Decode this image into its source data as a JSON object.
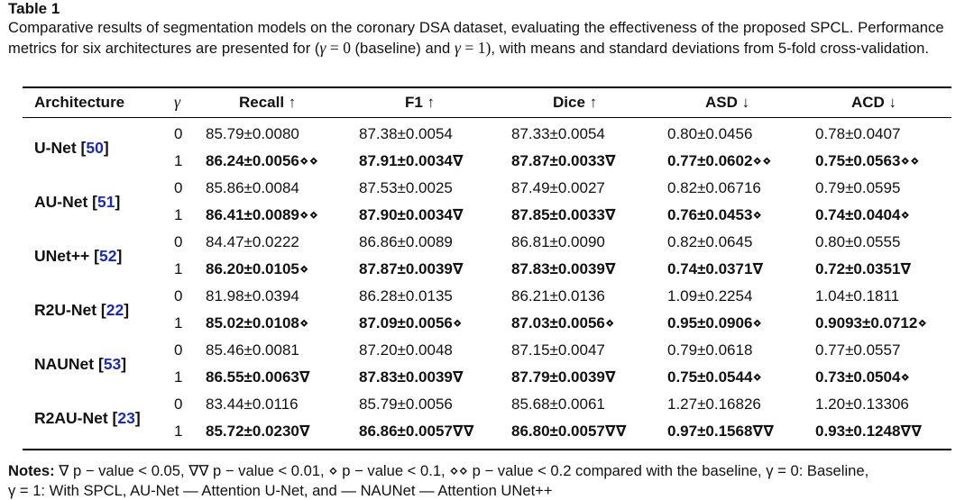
{
  "table_label": "Table 1",
  "caption": {
    "part1": "Comparative results of segmentation models on the coronary DSA dataset, evaluating the effectiveness of the proposed SPCL. Performance metrics for six architectures are presented for (",
    "part2": "(baseline) and ",
    "part3": ", with means and standard deviations from 5-fold cross-validation."
  },
  "headers": [
    "Architecture",
    "γ",
    "Recall ↑",
    "F1 ↑",
    "Dice ↑",
    "ASD ↓",
    "ACD ↓"
  ],
  "rows": [
    {
      "name": "U-Net",
      "ref": "50",
      "baseline": {
        "gamma": "0",
        "recall": "85.79±0.0080",
        "f1": "87.38±0.0054",
        "dice": "87.33±0.0054",
        "asd": "0.80±0.0456",
        "acd": "0.78±0.0407"
      },
      "spcl": {
        "gamma": "1",
        "recall": "86.24±0.0056⋄⋄",
        "f1": "87.91±0.0034∇",
        "dice": "87.87±0.0033∇",
        "asd": "0.77±0.0602⋄⋄",
        "acd": "0.75±0.0563⋄⋄"
      }
    },
    {
      "name": "AU-Net",
      "ref": "51",
      "baseline": {
        "gamma": "0",
        "recall": "85.86±0.0084",
        "f1": "87.53±0.0025",
        "dice": "87.49±0.0027",
        "asd": "0.82±0.06716",
        "acd": "0.79±0.0595"
      },
      "spcl": {
        "gamma": "1",
        "recall": "86.41±0.0089⋄⋄",
        "f1": "87.90±0.0034∇",
        "dice": "87.85±0.0033∇",
        "asd": "0.76±0.0453⋄",
        "acd": "0.74±0.0404⋄"
      }
    },
    {
      "name": "UNet++",
      "ref": "52",
      "baseline": {
        "gamma": "0",
        "recall": "84.47±0.0222",
        "f1": "86.86±0.0089",
        "dice": "86.81±0.0090",
        "asd": "0.82±0.0645",
        "acd": "0.80±0.0555"
      },
      "spcl": {
        "gamma": "1",
        "recall": "86.20±0.0105⋄",
        "f1": "87.87±0.0039∇",
        "dice": "87.83±0.0039∇",
        "asd": "0.74±0.0371∇",
        "acd": "0.72±0.0351∇"
      }
    },
    {
      "name": "R2U-Net",
      "ref": "22",
      "baseline": {
        "gamma": "0",
        "recall": "81.98±0.0394",
        "f1": "86.28±0.0135",
        "dice": "86.21±0.0136",
        "asd": "1.09±0.2254",
        "acd": "1.04±0.1811"
      },
      "spcl": {
        "gamma": "1",
        "recall": "85.02±0.0108⋄",
        "f1": "87.09±0.0056⋄",
        "dice": "87.03±0.0056⋄",
        "asd": "0.95±0.0906⋄",
        "acd": "0.9093±0.0712⋄"
      }
    },
    {
      "name": "NAUNet",
      "ref": "53",
      "baseline": {
        "gamma": "0",
        "recall": "85.46±0.0081",
        "f1": "87.20±0.0048",
        "dice": "87.15±0.0047",
        "asd": "0.79±0.0618",
        "acd": "0.77±0.0557"
      },
      "spcl": {
        "gamma": "1",
        "recall": "86.55±0.0063∇",
        "f1": "87.83±0.0039∇",
        "dice": "87.79±0.0039∇",
        "asd": "0.75±0.0544⋄",
        "acd": "0.73±0.0504⋄"
      }
    },
    {
      "name": "R2AU-Net",
      "ref": "23",
      "baseline": {
        "gamma": "0",
        "recall": "83.44±0.0116",
        "f1": "85.79±0.0056",
        "dice": "85.68±0.0061",
        "asd": "1.27±0.16826",
        "acd": "1.20±0.13306"
      },
      "spcl": {
        "gamma": "1",
        "recall": "85.72±0.0230∇",
        "f1": "86.86±0.0057∇∇",
        "dice": "86.80±0.0057∇∇",
        "asd": "0.97±0.1568∇∇",
        "acd": "0.93±0.1248∇∇"
      }
    }
  ],
  "notes": {
    "label": "Notes:",
    "text": "∇ p − value < 0.05, ∇∇ p − value < 0.01, ⋄ p − value < 0.1, ⋄⋄ p − value < 0.2 compared with the baseline, γ = 0: Baseline,",
    "text2": "γ = 1: With SPCL, AU-Net — Attention U-Net, and — NAUNet — Attention UNet++"
  }
}
